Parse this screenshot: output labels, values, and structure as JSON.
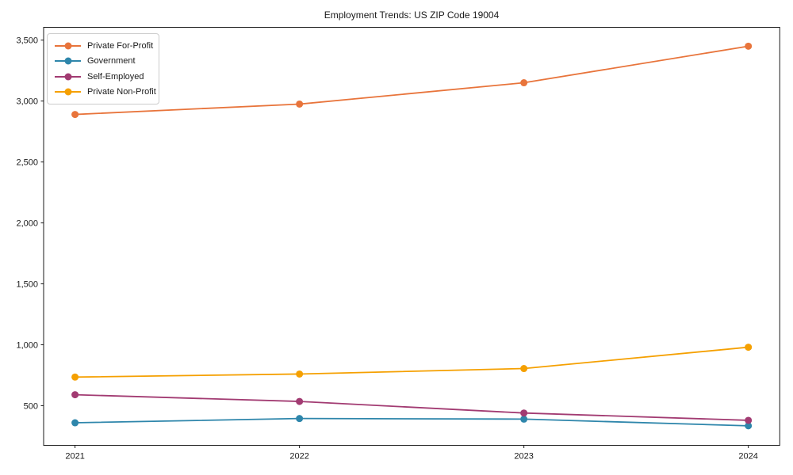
{
  "page": {
    "background_color": "#ffffff",
    "axis_color": "#1a1a1a",
    "text_color": "#1a1a1a",
    "legend_border_color": "#cccccc"
  },
  "chart_data": {
    "type": "line",
    "title": "Employment Trends: US ZIP Code 19004",
    "xlabel": "",
    "ylabel": "",
    "x": [
      2021,
      2022,
      2023,
      2024
    ],
    "x_tick_labels": [
      "2021",
      "2022",
      "2023",
      "2024"
    ],
    "series": [
      {
        "name": "Private For-Profit",
        "color": "#E8743B",
        "values": [
          2890,
          2975,
          3150,
          3450
        ]
      },
      {
        "name": "Government",
        "color": "#2E86AB",
        "values": [
          360,
          395,
          390,
          335
        ]
      },
      {
        "name": "Self-Employed",
        "color": "#A23B72",
        "values": [
          590,
          535,
          440,
          380
        ]
      },
      {
        "name": "Private Non-Profit",
        "color": "#F5A001",
        "values": [
          735,
          760,
          805,
          980
        ]
      }
    ],
    "xlim": [
      2020.86,
      2024.14
    ],
    "ylim": [
      175,
      3605
    ],
    "yticks": [
      500,
      1000,
      1500,
      2000,
      2500,
      3000,
      3500
    ],
    "ytick_labels": [
      "500",
      "1,000",
      "1,500",
      "2,000",
      "2,500",
      "3,000",
      "3,500"
    ],
    "grid": false,
    "legend_position": "upper left",
    "marker": "circle"
  }
}
